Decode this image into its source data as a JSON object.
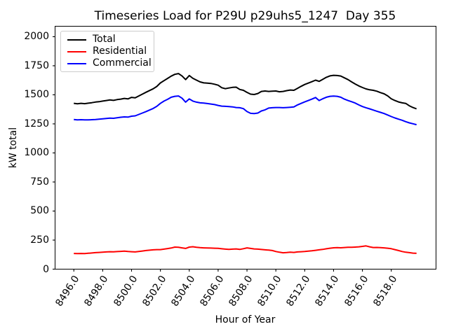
{
  "chart_data": {
    "type": "line",
    "title": "Timeseries Load for P29U p29uhs5_1247  Day 355",
    "xlabel": "Hour of Year",
    "ylabel": "kW total",
    "grid": false,
    "legend_position": "upper-left",
    "xlim": [
      8494.7,
      8521.1
    ],
    "ylim": [
      0,
      2090
    ],
    "x_ticks": [
      8496.0,
      8498.0,
      8500.0,
      8502.0,
      8504.0,
      8506.0,
      8508.0,
      8510.0,
      8512.0,
      8514.0,
      8516.0,
      8518.0
    ],
    "x_tick_labels": [
      "8496.0",
      "8498.0",
      "8500.0",
      "8502.0",
      "8504.0",
      "8506.0",
      "8508.0",
      "8510.0",
      "8512.0",
      "8514.0",
      "8516.0",
      "8518.0"
    ],
    "y_ticks": [
      0,
      250,
      500,
      750,
      1000,
      1250,
      1500,
      1750,
      2000
    ],
    "x": [
      8496.0,
      8496.25,
      8496.5,
      8496.75,
      8497.0,
      8497.25,
      8497.5,
      8497.75,
      8498.0,
      8498.25,
      8498.5,
      8498.75,
      8499.0,
      8499.25,
      8499.5,
      8499.75,
      8500.0,
      8500.25,
      8500.5,
      8500.75,
      8501.0,
      8501.25,
      8501.5,
      8501.75,
      8502.0,
      8502.25,
      8502.5,
      8502.75,
      8503.0,
      8503.25,
      8503.5,
      8503.75,
      8504.0,
      8504.25,
      8504.5,
      8504.75,
      8505.0,
      8505.25,
      8505.5,
      8505.75,
      8506.0,
      8506.25,
      8506.5,
      8506.75,
      8507.0,
      8507.25,
      8507.5,
      8507.75,
      8508.0,
      8508.25,
      8508.5,
      8508.75,
      8509.0,
      8509.25,
      8509.5,
      8509.75,
      8510.0,
      8510.25,
      8510.5,
      8510.75,
      8511.0,
      8511.25,
      8511.5,
      8511.75,
      8512.0,
      8512.25,
      8512.5,
      8512.75,
      8513.0,
      8513.25,
      8513.5,
      8513.75,
      8514.0,
      8514.25,
      8514.5,
      8514.75,
      8515.0,
      8515.25,
      8515.5,
      8515.75,
      8516.0,
      8516.25,
      8516.5,
      8516.75,
      8517.0,
      8517.25,
      8517.5,
      8517.75,
      8518.0,
      8518.25,
      8518.5,
      8518.75,
      8519.0,
      8519.25,
      8519.5,
      8519.75
    ],
    "series": [
      {
        "name": "Total",
        "color": "#000000",
        "values": [
          1427,
          1423,
          1427,
          1424,
          1428,
          1432,
          1438,
          1441,
          1446,
          1451,
          1456,
          1452,
          1459,
          1463,
          1469,
          1465,
          1478,
          1474,
          1490,
          1506,
          1522,
          1537,
          1552,
          1572,
          1602,
          1622,
          1641,
          1661,
          1676,
          1683,
          1662,
          1631,
          1666,
          1642,
          1626,
          1611,
          1603,
          1601,
          1598,
          1591,
          1583,
          1561,
          1553,
          1559,
          1564,
          1566,
          1546,
          1539,
          1521,
          1506,
          1503,
          1511,
          1529,
          1533,
          1529,
          1531,
          1533,
          1526,
          1529,
          1536,
          1541,
          1539,
          1556,
          1573,
          1589,
          1601,
          1613,
          1626,
          1616,
          1633,
          1651,
          1663,
          1668,
          1666,
          1662,
          1646,
          1631,
          1611,
          1593,
          1576,
          1563,
          1551,
          1543,
          1539,
          1531,
          1519,
          1509,
          1491,
          1466,
          1451,
          1439,
          1431,
          1426,
          1406,
          1391,
          1379
        ]
      },
      {
        "name": "Residential",
        "color": "#ff0000",
        "values": [
          135,
          134,
          135,
          134,
          137,
          139,
          142,
          144,
          146,
          148,
          150,
          149,
          151,
          153,
          155,
          152,
          150,
          148,
          152,
          156,
          160,
          163,
          166,
          168,
          168,
          172,
          177,
          182,
          190,
          188,
          183,
          178,
          190,
          193,
          188,
          185,
          183,
          182,
          181,
          180,
          179,
          175,
          172,
          170,
          172,
          174,
          170,
          176,
          183,
          178,
          174,
          172,
          169,
          166,
          164,
          160,
          152,
          146,
          141,
          143,
          146,
          144,
          148,
          150,
          152,
          155,
          158,
          162,
          166,
          170,
          175,
          180,
          184,
          185,
          184,
          186,
          188,
          188,
          190,
          192,
          196,
          200,
          192,
          186,
          187,
          185,
          183,
          180,
          176,
          168,
          160,
          152,
          146,
          142,
          138,
          136
        ]
      },
      {
        "name": "Commercial",
        "color": "#0000ff",
        "values": [
          1288,
          1284,
          1286,
          1284,
          1284,
          1286,
          1288,
          1291,
          1294,
          1297,
          1300,
          1298,
          1302,
          1307,
          1310,
          1308,
          1316,
          1319,
          1331,
          1343,
          1356,
          1369,
          1383,
          1401,
          1426,
          1446,
          1461,
          1479,
          1487,
          1490,
          1471,
          1437,
          1465,
          1446,
          1437,
          1431,
          1429,
          1425,
          1421,
          1416,
          1409,
          1403,
          1401,
          1399,
          1396,
          1391,
          1389,
          1381,
          1356,
          1341,
          1339,
          1343,
          1361,
          1371,
          1386,
          1389,
          1391,
          1391,
          1389,
          1391,
          1393,
          1396,
          1413,
          1426,
          1439,
          1451,
          1463,
          1477,
          1451,
          1466,
          1479,
          1487,
          1489,
          1487,
          1479,
          1463,
          1451,
          1441,
          1429,
          1413,
          1399,
          1389,
          1379,
          1369,
          1359,
          1349,
          1339,
          1326,
          1313,
          1301,
          1291,
          1281,
          1269,
          1259,
          1251,
          1243
        ]
      }
    ]
  }
}
